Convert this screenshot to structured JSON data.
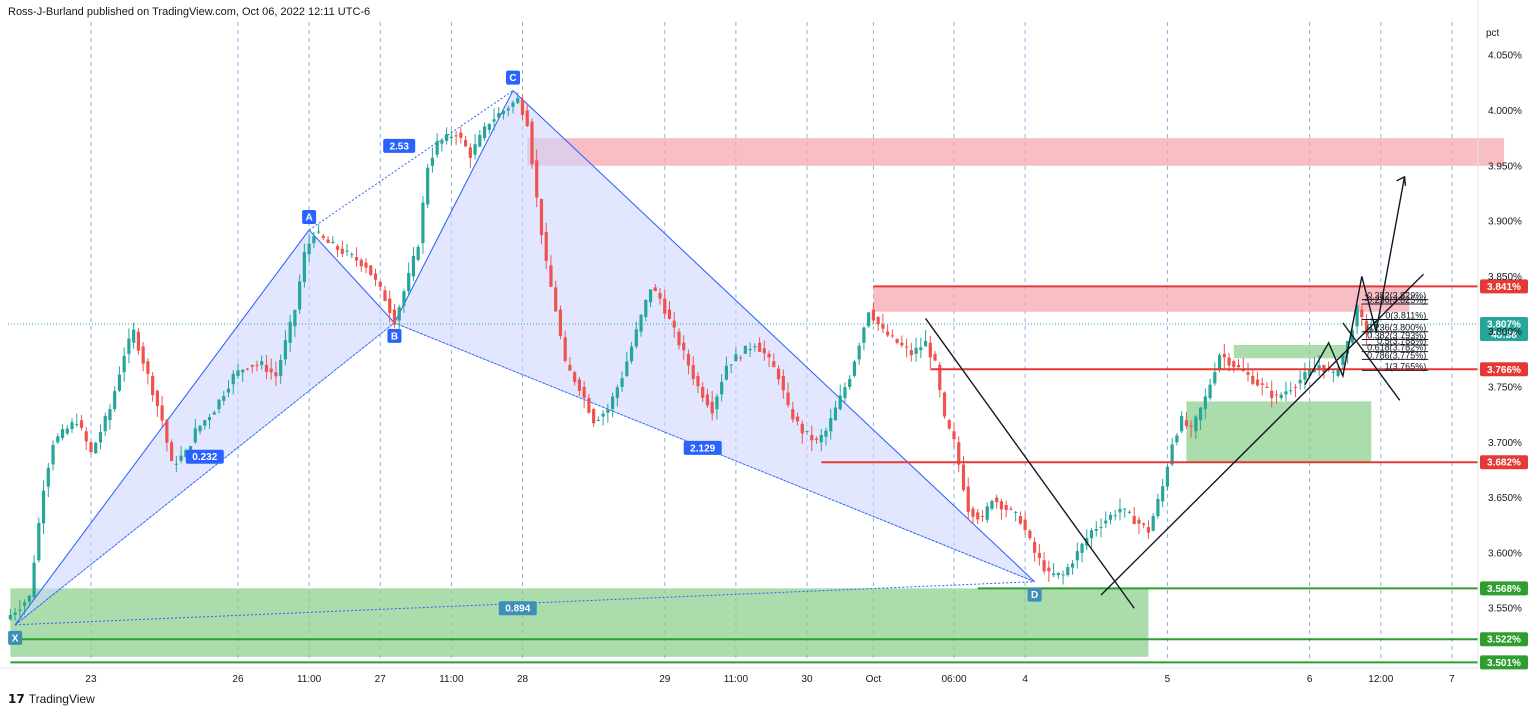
{
  "header": {
    "text": "Ross-J-Burland published on TradingView.com, Oct 06, 2022 12:11 UTC-6"
  },
  "footer": {
    "logo": "17",
    "brand": "TradingView"
  },
  "colors": {
    "up": "#26a69a",
    "down": "#ef5350",
    "pattern_fill": "#cfd8ff",
    "pattern_line": "#2962ff",
    "red_zone": "#f7a8b0",
    "green_zone": "#8fd08f",
    "red_line": "#e53935",
    "green_line": "#2e9e2e"
  },
  "chart_data": {
    "type": "candlestick",
    "y_unit": "pct",
    "ylim": [
      3.505,
      4.08
    ],
    "yticks": [
      4.05,
      4.0,
      3.95,
      3.9,
      3.85,
      3.8,
      3.75,
      3.7,
      3.65,
      3.6,
      3.55
    ],
    "ytick_labels": [
      "4.050%",
      "4.000%",
      "3.950%",
      "3.900%",
      "3.850%",
      "3.800%",
      "3.750%",
      "3.700%",
      "3.650%",
      "3.600%",
      "3.550%"
    ],
    "xticks": [
      {
        "label": "23",
        "i": 17
      },
      {
        "label": "26",
        "i": 48
      },
      {
        "label": "11:00",
        "i": 63
      },
      {
        "label": "27",
        "i": 78
      },
      {
        "label": "11:00",
        "i": 93
      },
      {
        "label": "28",
        "i": 108
      },
      {
        "label": "29",
        "i": 138
      },
      {
        "label": "11:00",
        "i": 153
      },
      {
        "label": "30",
        "i": 168
      },
      {
        "label": "Oct",
        "i": 182
      },
      {
        "label": "06:00",
        "i": 199
      },
      {
        "label": "4",
        "i": 214
      },
      {
        "label": "5",
        "i": 244
      },
      {
        "label": "6",
        "i": 274
      },
      {
        "label": "12:00",
        "i": 289
      },
      {
        "label": "7",
        "i": 304
      }
    ],
    "anchors": [
      [
        0,
        3.54
      ],
      [
        5,
        3.56
      ],
      [
        8,
        3.66
      ],
      [
        10,
        3.7
      ],
      [
        15,
        3.72
      ],
      [
        18,
        3.69
      ],
      [
        22,
        3.73
      ],
      [
        25,
        3.78
      ],
      [
        27,
        3.8
      ],
      [
        30,
        3.76
      ],
      [
        33,
        3.72
      ],
      [
        35,
        3.68
      ],
      [
        38,
        3.69
      ],
      [
        40,
        3.71
      ],
      [
        44,
        3.73
      ],
      [
        48,
        3.76
      ],
      [
        51,
        3.77
      ],
      [
        54,
        3.77
      ],
      [
        57,
        3.76
      ],
      [
        61,
        3.82
      ],
      [
        63,
        3.87
      ],
      [
        65,
        3.89
      ],
      [
        68,
        3.88
      ],
      [
        72,
        3.87
      ],
      [
        76,
        3.86
      ],
      [
        80,
        3.83
      ],
      [
        82,
        3.81
      ],
      [
        85,
        3.85
      ],
      [
        87,
        3.88
      ],
      [
        89,
        3.95
      ],
      [
        91,
        3.97
      ],
      [
        95,
        3.98
      ],
      [
        98,
        3.96
      ],
      [
        102,
        3.99
      ],
      [
        105,
        4.0
      ],
      [
        108,
        4.01
      ],
      [
        110,
        3.99
      ],
      [
        112,
        3.92
      ],
      [
        114,
        3.86
      ],
      [
        116,
        3.82
      ],
      [
        118,
        3.77
      ],
      [
        121,
        3.75
      ],
      [
        124,
        3.72
      ],
      [
        127,
        3.73
      ],
      [
        130,
        3.76
      ],
      [
        133,
        3.8
      ],
      [
        136,
        3.84
      ],
      [
        138,
        3.83
      ],
      [
        141,
        3.8
      ],
      [
        143,
        3.78
      ],
      [
        146,
        3.75
      ],
      [
        149,
        3.73
      ],
      [
        152,
        3.77
      ],
      [
        155,
        3.78
      ],
      [
        158,
        3.79
      ],
      [
        160,
        3.78
      ],
      [
        163,
        3.76
      ],
      [
        165,
        3.73
      ],
      [
        168,
        3.71
      ],
      [
        171,
        3.7
      ],
      [
        173,
        3.71
      ],
      [
        176,
        3.74
      ],
      [
        178,
        3.76
      ],
      [
        180,
        3.79
      ],
      [
        182,
        3.82
      ],
      [
        185,
        3.8
      ],
      [
        188,
        3.79
      ],
      [
        191,
        3.78
      ],
      [
        194,
        3.79
      ],
      [
        196,
        3.77
      ],
      [
        198,
        3.72
      ],
      [
        200,
        3.7
      ],
      [
        203,
        3.64
      ],
      [
        206,
        3.63
      ],
      [
        208,
        3.65
      ],
      [
        211,
        3.64
      ],
      [
        214,
        3.63
      ],
      [
        217,
        3.6
      ],
      [
        220,
        3.58
      ],
      [
        223,
        3.58
      ],
      [
        226,
        3.6
      ],
      [
        229,
        3.62
      ],
      [
        232,
        3.63
      ],
      [
        235,
        3.64
      ],
      [
        238,
        3.63
      ],
      [
        241,
        3.62
      ],
      [
        244,
        3.66
      ],
      [
        246,
        3.7
      ],
      [
        248,
        3.72
      ],
      [
        250,
        3.71
      ],
      [
        253,
        3.74
      ],
      [
        256,
        3.78
      ],
      [
        259,
        3.77
      ],
      [
        262,
        3.76
      ],
      [
        265,
        3.75
      ],
      [
        268,
        3.74
      ],
      [
        271,
        3.75
      ],
      [
        274,
        3.76
      ],
      [
        277,
        3.77
      ],
      [
        280,
        3.76
      ],
      [
        283,
        3.79
      ],
      [
        285,
        3.82
      ],
      [
        287,
        3.8
      ],
      [
        289,
        3.807
      ]
    ],
    "harmonic": {
      "points": [
        {
          "label": "X",
          "i": 1,
          "price": 3.535
        },
        {
          "label": "A",
          "i": 63,
          "price": 3.892
        },
        {
          "label": "B",
          "i": 81,
          "price": 3.808
        },
        {
          "label": "C",
          "i": 106,
          "price": 4.018
        },
        {
          "label": "D",
          "i": 216,
          "price": 3.574
        }
      ],
      "ratios": [
        {
          "label": "0.232",
          "i": 41,
          "price": 3.687
        },
        {
          "label": "2.53",
          "i": 82,
          "price": 3.968
        },
        {
          "label": "2.129",
          "i": 146,
          "price": 3.695
        },
        {
          "label": "0.894",
          "i": 107,
          "price": 3.55
        }
      ]
    },
    "zones": [
      {
        "kind": "red",
        "i0": 109,
        "i1": 315,
        "p0": 3.95,
        "p1": 3.975
      },
      {
        "kind": "red",
        "i0": 182,
        "i1": 295,
        "p0": 3.818,
        "p1": 3.841
      },
      {
        "kind": "green",
        "i0": 0,
        "i1": 240,
        "p0": 3.506,
        "p1": 3.568
      },
      {
        "kind": "green",
        "i0": 248,
        "i1": 287,
        "p0": 3.682,
        "p1": 3.737
      },
      {
        "kind": "green",
        "i0": 258,
        "i1": 282,
        "p0": 3.776,
        "p1": 3.788
      }
    ],
    "levels": [
      {
        "kind": "red",
        "label": "3.841%",
        "price": 3.841,
        "i0": 182
      },
      {
        "kind": "red",
        "label": "3.766%",
        "price": 3.766,
        "i0": 194
      },
      {
        "kind": "red",
        "label": "3.682%",
        "price": 3.682,
        "i0": 171
      },
      {
        "kind": "green",
        "label": "3.568%",
        "price": 3.568,
        "i0": 204
      },
      {
        "kind": "green",
        "label": "3.522%",
        "price": 3.522,
        "i0": 1
      },
      {
        "kind": "green",
        "label": "3.501%",
        "price": 3.501,
        "i0": 0
      }
    ],
    "current": {
      "label": "3.807%",
      "price": 3.807,
      "countdown": "48:38"
    },
    "fib": {
      "i0": 285,
      "i1": 299,
      "levels": [
        {
          "label": "-0.382(3.829%)",
          "price": 3.829
        },
        {
          "label": "-0.236(3.825%)",
          "price": 3.825
        },
        {
          "label": "0(3.811%)",
          "price": 3.811
        },
        {
          "label": "0.236(3.800%)",
          "price": 3.8
        },
        {
          "label": "0.382(3.793%)",
          "price": 3.793
        },
        {
          "label": "0.5(3.788%)",
          "price": 3.788
        },
        {
          "label": "0.618(3.782%)",
          "price": 3.782
        },
        {
          "label": "0.786(3.775%)",
          "price": 3.775
        },
        {
          "label": "1(3.765%)",
          "price": 3.765
        }
      ]
    },
    "trendlines": [
      [
        [
          193,
          3.812
        ],
        [
          237,
          3.55
        ]
      ],
      [
        [
          230,
          3.562
        ],
        [
          298,
          3.852
        ]
      ],
      [
        [
          281,
          3.808
        ],
        [
          293,
          3.738
        ]
      ]
    ]
  }
}
